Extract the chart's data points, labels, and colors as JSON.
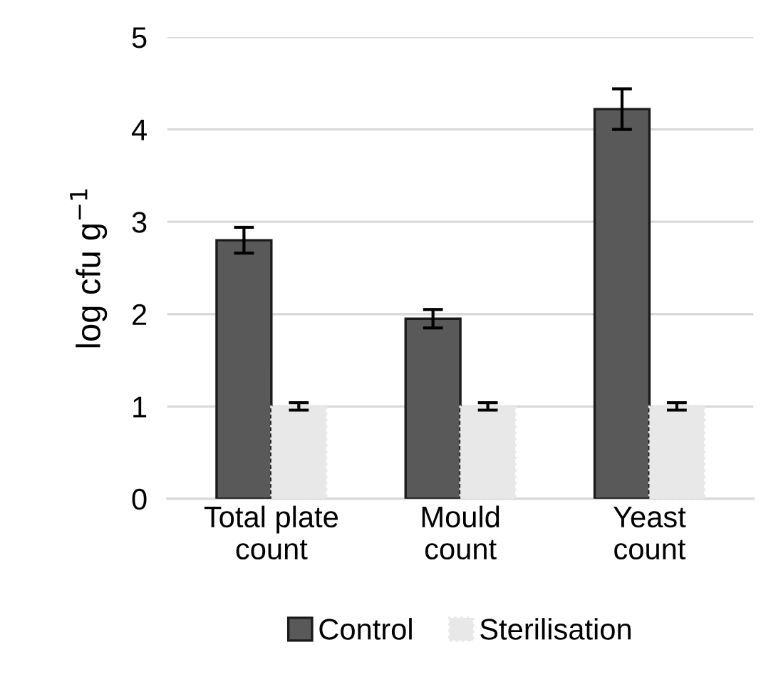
{
  "chart_data": {
    "type": "bar",
    "ylabel": "log cfu g$^{−1}$",
    "categories": [
      "Total plate\ncount",
      "Mould\ncount",
      "Yeast\ncount"
    ],
    "series": [
      {
        "name": "Control",
        "color": "#595959",
        "values": [
          2.8,
          1.95,
          4.22
        ],
        "errors": [
          0.14,
          0.1,
          0.22
        ]
      },
      {
        "name": "Sterilisation",
        "color": "#e8e8e8",
        "values": [
          1.0,
          1.0,
          1.0
        ],
        "errors": [
          0.04,
          0.04,
          0.04
        ]
      }
    ],
    "ylim": [
      0,
      5
    ],
    "yticks": [
      0,
      1,
      2,
      3,
      4,
      5
    ],
    "grid": "y",
    "legend": "bottom"
  }
}
